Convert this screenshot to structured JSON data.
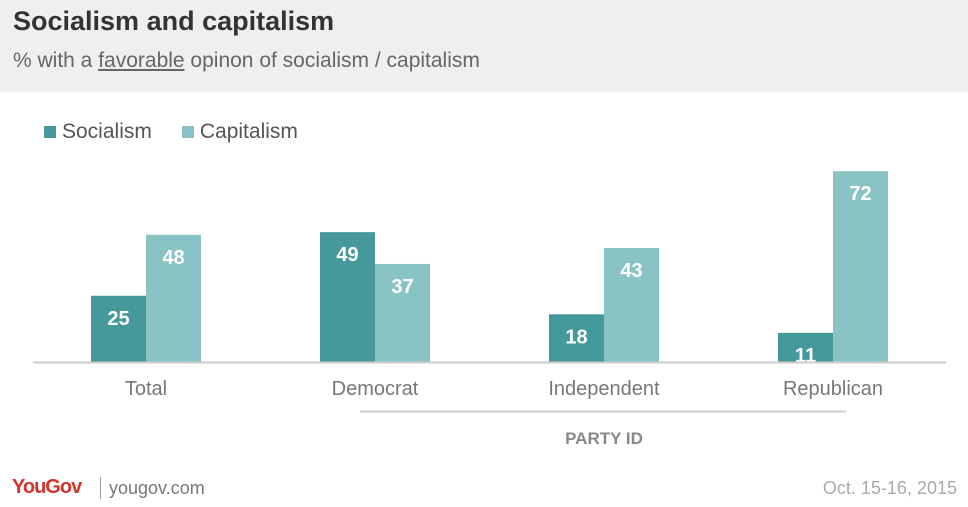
{
  "header": {
    "title": "Socialism and capitalism",
    "subtitle_pre": "% with a ",
    "subtitle_em": "favorable",
    "subtitle_post": " opinon of socialism / capitalism"
  },
  "colors": {
    "socialism": "#46999a",
    "capitalism": "#8ac3c3",
    "header_bg": "#efefef",
    "axis": "#cccccc",
    "brand_red": "#d0352e"
  },
  "chart_data": {
    "type": "bar",
    "categories": [
      "Total",
      "Democrat",
      "Independent",
      "Republican"
    ],
    "series": [
      {
        "name": "Socialism",
        "values": [
          25,
          49,
          18,
          11
        ]
      },
      {
        "name": "Capitalism",
        "values": [
          48,
          37,
          43,
          72
        ]
      }
    ],
    "group_label": "PARTY ID",
    "grouped_categories": [
      "Democrat",
      "Independent",
      "Republican"
    ],
    "legend_position": "top-left",
    "grid": false,
    "ylim": [
      0,
      72
    ]
  },
  "footer": {
    "logo_you": "You",
    "logo_gov": "Gov",
    "site": "yougov.com",
    "date": "Oct. 15-16, 2015"
  }
}
